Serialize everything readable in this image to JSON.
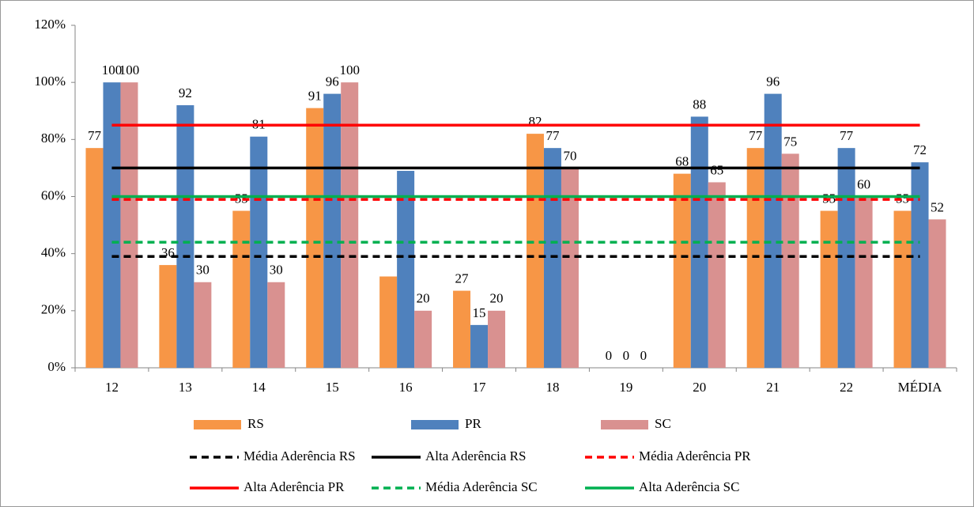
{
  "chart_data": {
    "type": "bar",
    "categories": [
      "12",
      "13",
      "14",
      "15",
      "16",
      "17",
      "18",
      "19",
      "20",
      "21",
      "22",
      "MÉDIA"
    ],
    "series": [
      {
        "name": "RS",
        "color": "#f79646",
        "values": [
          77,
          36,
          55,
          91,
          32,
          27,
          82,
          0,
          68,
          77,
          55,
          55
        ],
        "value_labels": [
          "77",
          "36",
          "55",
          "91",
          null,
          "27",
          "82",
          "0",
          "68",
          "77",
          "55",
          "55"
        ]
      },
      {
        "name": "PR",
        "color": "#4f81bd",
        "values": [
          100,
          92,
          81,
          96,
          69,
          15,
          77,
          0,
          88,
          96,
          77,
          72
        ],
        "value_labels": [
          "100",
          "92",
          "81",
          "96",
          null,
          "15",
          "77",
          "0",
          "88",
          "96",
          "77",
          "72"
        ]
      },
      {
        "name": "SC",
        "color": "#d99190",
        "values": [
          100,
          30,
          30,
          100,
          20,
          20,
          70,
          0,
          65,
          75,
          60,
          52
        ],
        "value_labels": [
          "100",
          "30",
          "30",
          "100",
          "20",
          "20",
          "70",
          "0",
          "65",
          "75",
          "60",
          "52"
        ]
      }
    ],
    "reference_lines": [
      {
        "name": "Média Aderência RS",
        "color": "#000000",
        "dashed": true,
        "value": 39
      },
      {
        "name": "Alta Aderência RS",
        "color": "#000000",
        "dashed": false,
        "value": 70
      },
      {
        "name": "Média Aderência PR",
        "color": "#ff0000",
        "dashed": true,
        "value": 59
      },
      {
        "name": "Alta Aderência PR",
        "color": "#ff0000",
        "dashed": false,
        "value": 85
      },
      {
        "name": "Média Aderência SC",
        "color": "#00b050",
        "dashed": true,
        "value": 44
      },
      {
        "name": "Alta Aderência SC",
        "color": "#00b050",
        "dashed": false,
        "value": 60
      }
    ],
    "ylim": [
      0,
      120
    ],
    "yticks": [
      {
        "value": 0,
        "label": "0%"
      },
      {
        "value": 20,
        "label": "20%"
      },
      {
        "value": 40,
        "label": "40%"
      },
      {
        "value": 60,
        "label": "60%"
      },
      {
        "value": 80,
        "label": "80%"
      },
      {
        "value": 100,
        "label": "100%"
      },
      {
        "value": 120,
        "label": "120%"
      }
    ],
    "grid": false
  }
}
